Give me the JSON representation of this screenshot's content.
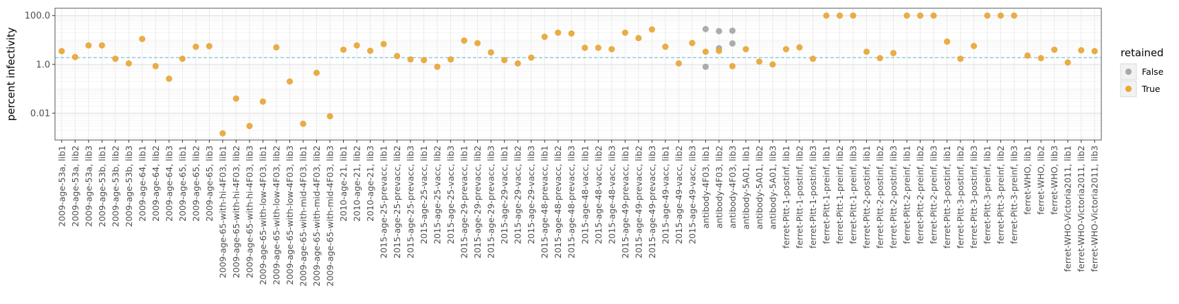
{
  "chart_data": {
    "type": "scatter",
    "title": "",
    "xlabel": "",
    "ylabel": "percent infectivity",
    "yscale": "log",
    "ylim": [
      0.0008,
      200
    ],
    "yticks": [
      0.01,
      1.0,
      100.0
    ],
    "ytick_labels": [
      "0.01",
      "1.0",
      "100.0"
    ],
    "grid": true,
    "hline": {
      "y": 1.9,
      "color": "#6ec1d6",
      "style": "dashed"
    },
    "legend": {
      "title": "retained",
      "position": "right",
      "entries": [
        {
          "label": "False",
          "color": "#a8a8a8"
        },
        {
          "label": "True",
          "color": "#e8a93b"
        }
      ]
    },
    "categories": [
      "2009-age-53a, lib1",
      "2009-age-53a, lib2",
      "2009-age-53a, lib3",
      "2009-age-53b, lib1",
      "2009-age-53b, lib2",
      "2009-age-53b, lib3",
      "2009-age-64, lib1",
      "2009-age-64, lib2",
      "2009-age-64, lib3",
      "2009-age-65, lib1",
      "2009-age-65, lib2",
      "2009-age-65, lib3",
      "2009-age-65-with-hi-4F03, lib1",
      "2009-age-65-with-hi-4F03, lib2",
      "2009-age-65-with-hi-4F03, lib3",
      "2009-age-65-with-low-4F03, lib1",
      "2009-age-65-with-low-4F03, lib2",
      "2009-age-65-with-low-4F03, lib3",
      "2009-age-65-with-mid-4F03, lib1",
      "2009-age-65-with-mid-4F03, lib2",
      "2009-age-65-with-mid-4F03, lib3",
      "2010-age-21, lib1",
      "2010-age-21, lib2",
      "2010-age-21, lib3",
      "2015-age-25-prevacc, lib1",
      "2015-age-25-prevacc, lib2",
      "2015-age-25-prevacc, lib3",
      "2015-age-25-vacc, lib1",
      "2015-age-25-vacc, lib2",
      "2015-age-25-vacc, lib3",
      "2015-age-29-prevacc, lib1",
      "2015-age-29-prevacc, lib2",
      "2015-age-29-prevacc, lib3",
      "2015-age-29-vacc, lib1",
      "2015-age-29-vacc, lib2",
      "2015-age-29-vacc, lib3",
      "2015-age-48-prevacc, lib1",
      "2015-age-48-prevacc, lib2",
      "2015-age-48-prevacc, lib3",
      "2015-age-48-vacc, lib1",
      "2015-age-48-vacc, lib2",
      "2015-age-48-vacc, lib3",
      "2015-age-49-prevacc, lib1",
      "2015-age-49-prevacc, lib2",
      "2015-age-49-prevacc, lib3",
      "2015-age-49-vacc, lib1",
      "2015-age-49-vacc, lib2",
      "2015-age-49-vacc, lib3",
      "antibody-4F03, lib1",
      "antibody-4F03, lib2",
      "antibody-4F03, lib3",
      "antibody-5A01, lib1",
      "antibody-5A01, lib2",
      "antibody-5A01, lib3",
      "ferret-Pitt-1-postinf, lib1",
      "ferret-Pitt-1-postinf, lib2",
      "ferret-Pitt-1-postinf, lib3",
      "ferret-Pitt-1-preinf, lib1",
      "ferret-Pitt-1-preinf, lib2",
      "ferret-Pitt-1-preinf, lib3",
      "ferret-Pitt-2-postinf, lib1",
      "ferret-Pitt-2-postinf, lib2",
      "ferret-Pitt-2-postinf, lib3",
      "ferret-Pitt-2-preinf, lib1",
      "ferret-Pitt-2-preinf, lib2",
      "ferret-Pitt-2-preinf, lib3",
      "ferret-Pitt-3-postinf, lib1",
      "ferret-Pitt-3-postinf, lib2",
      "ferret-Pitt-3-postinf, lib3",
      "ferret-Pitt-3-preinf, lib1",
      "ferret-Pitt-3-preinf, lib2",
      "ferret-Pitt-3-preinf, lib3",
      "ferret-WHO, lib1",
      "ferret-WHO, lib2",
      "ferret-WHO, lib3",
      "ferret-WHO-Victoria2011, lib1",
      "ferret-WHO-Victoria2011, lib2",
      "ferret-WHO-Victoria2011, lib3"
    ],
    "points": [
      {
        "category": "2009-age-53a, lib1",
        "y": 3.5,
        "retained": "True"
      },
      {
        "category": "2009-age-53a, lib2",
        "y": 2.0,
        "retained": "True"
      },
      {
        "category": "2009-age-53a, lib3",
        "y": 6.0,
        "retained": "True"
      },
      {
        "category": "2009-age-53b, lib1",
        "y": 6.0,
        "retained": "True"
      },
      {
        "category": "2009-age-53b, lib2",
        "y": 1.7,
        "retained": "True"
      },
      {
        "category": "2009-age-53b, lib3",
        "y": 1.1,
        "retained": "True"
      },
      {
        "category": "2009-age-64, lib1",
        "y": 11.0,
        "retained": "True"
      },
      {
        "category": "2009-age-64, lib2",
        "y": 0.85,
        "retained": "True"
      },
      {
        "category": "2009-age-64, lib3",
        "y": 0.26,
        "retained": "True"
      },
      {
        "category": "2009-age-65, lib1",
        "y": 1.7,
        "retained": "True"
      },
      {
        "category": "2009-age-65, lib2",
        "y": 5.3,
        "retained": "True"
      },
      {
        "category": "2009-age-65, lib3",
        "y": 5.6,
        "retained": "True"
      },
      {
        "category": "2009-age-65-with-hi-4F03, lib1",
        "y": 0.0015,
        "retained": "True"
      },
      {
        "category": "2009-age-65-with-hi-4F03, lib2",
        "y": 0.04,
        "retained": "True"
      },
      {
        "category": "2009-age-65-with-hi-4F03, lib3",
        "y": 0.003,
        "retained": "True"
      },
      {
        "category": "2009-age-65-with-low-4F03, lib1",
        "y": 0.03,
        "retained": "True"
      },
      {
        "category": "2009-age-65-with-low-4F03, lib2",
        "y": 5.0,
        "retained": "True"
      },
      {
        "category": "2009-age-65-with-low-4F03, lib3",
        "y": 0.2,
        "retained": "True"
      },
      {
        "category": "2009-age-65-with-mid-4F03, lib1",
        "y": 0.0037,
        "retained": "True"
      },
      {
        "category": "2009-age-65-with-mid-4F03, lib2",
        "y": 0.45,
        "retained": "True"
      },
      {
        "category": "2009-age-65-with-mid-4F03, lib3",
        "y": 0.0075,
        "retained": "True"
      },
      {
        "category": "2010-age-21, lib1",
        "y": 4.0,
        "retained": "True"
      },
      {
        "category": "2010-age-21, lib2",
        "y": 6.0,
        "retained": "True"
      },
      {
        "category": "2010-age-21, lib3",
        "y": 3.6,
        "retained": "True"
      },
      {
        "category": "2015-age-25-prevacc, lib1",
        "y": 6.8,
        "retained": "True"
      },
      {
        "category": "2015-age-25-prevacc, lib2",
        "y": 2.2,
        "retained": "True"
      },
      {
        "category": "2015-age-25-prevacc, lib3",
        "y": 1.6,
        "retained": "True"
      },
      {
        "category": "2015-age-25-vacc, lib1",
        "y": 1.5,
        "retained": "True"
      },
      {
        "category": "2015-age-25-vacc, lib2",
        "y": 0.8,
        "retained": "True"
      },
      {
        "category": "2015-age-25-vacc, lib3",
        "y": 1.6,
        "retained": "True"
      },
      {
        "category": "2015-age-29-prevacc, lib1",
        "y": 9.5,
        "retained": "True"
      },
      {
        "category": "2015-age-29-prevacc, lib2",
        "y": 7.4,
        "retained": "True"
      },
      {
        "category": "2015-age-29-prevacc, lib3",
        "y": 3.1,
        "retained": "True"
      },
      {
        "category": "2015-age-29-vacc, lib1",
        "y": 1.5,
        "retained": "True"
      },
      {
        "category": "2015-age-29-vacc, lib2",
        "y": 1.1,
        "retained": "True"
      },
      {
        "category": "2015-age-29-vacc, lib3",
        "y": 1.9,
        "retained": "True"
      },
      {
        "category": "2015-age-48-prevacc, lib1",
        "y": 13.5,
        "retained": "True"
      },
      {
        "category": "2015-age-48-prevacc, lib2",
        "y": 20.0,
        "retained": "True"
      },
      {
        "category": "2015-age-48-prevacc, lib3",
        "y": 18.5,
        "retained": "True"
      },
      {
        "category": "2015-age-48-vacc, lib1",
        "y": 4.8,
        "retained": "True"
      },
      {
        "category": "2015-age-48-vacc, lib2",
        "y": 4.8,
        "retained": "True"
      },
      {
        "category": "2015-age-48-vacc, lib3",
        "y": 4.2,
        "retained": "True"
      },
      {
        "category": "2015-age-49-prevacc, lib1",
        "y": 20.0,
        "retained": "True"
      },
      {
        "category": "2015-age-49-prevacc, lib2",
        "y": 12.0,
        "retained": "True"
      },
      {
        "category": "2015-age-49-prevacc, lib3",
        "y": 27.0,
        "retained": "True"
      },
      {
        "category": "2015-age-49-vacc, lib1",
        "y": 5.3,
        "retained": "True"
      },
      {
        "category": "2015-age-49-vacc, lib2",
        "y": 1.1,
        "retained": "True"
      },
      {
        "category": "2015-age-49-vacc, lib3",
        "y": 7.5,
        "retained": "True"
      },
      {
        "category": "antibody-4F03, lib1",
        "y": 28.0,
        "retained": "False"
      },
      {
        "category": "antibody-4F03, lib1",
        "y": 0.8,
        "retained": "False"
      },
      {
        "category": "antibody-4F03, lib1",
        "y": 3.3,
        "retained": "True"
      },
      {
        "category": "antibody-4F03, lib2",
        "y": 23.0,
        "retained": "False"
      },
      {
        "category": "antibody-4F03, lib2",
        "y": 4.6,
        "retained": "False"
      },
      {
        "category": "antibody-4F03, lib2",
        "y": 3.6,
        "retained": "True"
      },
      {
        "category": "antibody-4F03, lib3",
        "y": 24.0,
        "retained": "False"
      },
      {
        "category": "antibody-4F03, lib3",
        "y": 7.2,
        "retained": "False"
      },
      {
        "category": "antibody-4F03, lib3",
        "y": 0.85,
        "retained": "True"
      },
      {
        "category": "antibody-5A01, lib1",
        "y": 4.2,
        "retained": "True"
      },
      {
        "category": "antibody-5A01, lib2",
        "y": 1.3,
        "retained": "True"
      },
      {
        "category": "antibody-5A01, lib3",
        "y": 1.0,
        "retained": "True"
      },
      {
        "category": "ferret-Pitt-1-postinf, lib1",
        "y": 4.2,
        "retained": "True"
      },
      {
        "category": "ferret-Pitt-1-postinf, lib2",
        "y": 5.0,
        "retained": "True"
      },
      {
        "category": "ferret-Pitt-1-postinf, lib3",
        "y": 1.7,
        "retained": "True"
      },
      {
        "category": "ferret-Pitt-1-preinf, lib1",
        "y": 100.0,
        "retained": "True"
      },
      {
        "category": "ferret-Pitt-1-preinf, lib2",
        "y": 100.0,
        "retained": "True"
      },
      {
        "category": "ferret-Pitt-1-preinf, lib3",
        "y": 100.0,
        "retained": "True"
      },
      {
        "category": "ferret-Pitt-2-postinf, lib1",
        "y": 3.3,
        "retained": "True"
      },
      {
        "category": "ferret-Pitt-2-postinf, lib2",
        "y": 1.8,
        "retained": "True"
      },
      {
        "category": "ferret-Pitt-2-postinf, lib3",
        "y": 2.9,
        "retained": "True"
      },
      {
        "category": "ferret-Pitt-2-preinf, lib1",
        "y": 100.0,
        "retained": "True"
      },
      {
        "category": "ferret-Pitt-2-preinf, lib2",
        "y": 100.0,
        "retained": "True"
      },
      {
        "category": "ferret-Pitt-2-preinf, lib3",
        "y": 100.0,
        "retained": "True"
      },
      {
        "category": "ferret-Pitt-3-postinf, lib1",
        "y": 8.6,
        "retained": "True"
      },
      {
        "category": "ferret-Pitt-3-postinf, lib2",
        "y": 1.7,
        "retained": "True"
      },
      {
        "category": "ferret-Pitt-3-postinf, lib3",
        "y": 5.7,
        "retained": "True"
      },
      {
        "category": "ferret-Pitt-3-preinf, lib1",
        "y": 100.0,
        "retained": "True"
      },
      {
        "category": "ferret-Pitt-3-preinf, lib2",
        "y": 100.0,
        "retained": "True"
      },
      {
        "category": "ferret-Pitt-3-preinf, lib3",
        "y": 100.0,
        "retained": "True"
      },
      {
        "category": "ferret-WHO, lib1",
        "y": 2.3,
        "retained": "True"
      },
      {
        "category": "ferret-WHO, lib2",
        "y": 1.8,
        "retained": "True"
      },
      {
        "category": "ferret-WHO, lib3",
        "y": 4.0,
        "retained": "True"
      },
      {
        "category": "ferret-WHO-Victoria2011, lib1",
        "y": 1.2,
        "retained": "True"
      },
      {
        "category": "ferret-WHO-Victoria2011, lib2",
        "y": 3.8,
        "retained": "True"
      },
      {
        "category": "ferret-WHO-Victoria2011, lib3",
        "y": 3.5,
        "retained": "True"
      }
    ]
  }
}
